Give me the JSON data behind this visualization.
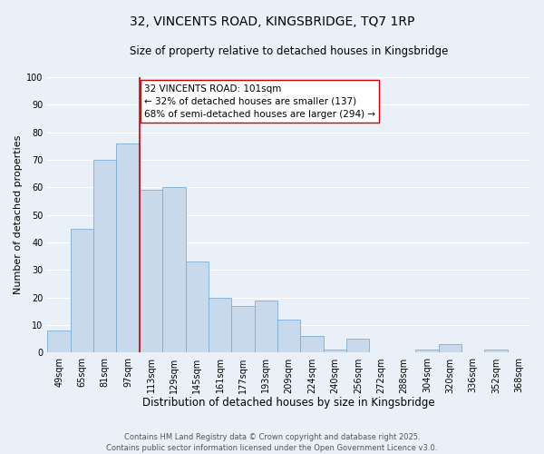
{
  "title": "32, VINCENTS ROAD, KINGSBRIDGE, TQ7 1RP",
  "subtitle": "Size of property relative to detached houses in Kingsbridge",
  "xlabel": "Distribution of detached houses by size in Kingsbridge",
  "ylabel": "Number of detached properties",
  "categories": [
    "49sqm",
    "65sqm",
    "81sqm",
    "97sqm",
    "113sqm",
    "129sqm",
    "145sqm",
    "161sqm",
    "177sqm",
    "193sqm",
    "209sqm",
    "224sqm",
    "240sqm",
    "256sqm",
    "272sqm",
    "288sqm",
    "304sqm",
    "320sqm",
    "336sqm",
    "352sqm",
    "368sqm"
  ],
  "values": [
    8,
    45,
    70,
    76,
    59,
    60,
    33,
    20,
    17,
    19,
    12,
    6,
    1,
    5,
    0,
    0,
    1,
    3,
    0,
    1,
    0
  ],
  "bar_color": "#c9d9ec",
  "bar_edge_color": "#7aaed6",
  "bar_width": 1.0,
  "ylim": [
    0,
    100
  ],
  "yticks": [
    0,
    10,
    20,
    30,
    40,
    50,
    60,
    70,
    80,
    90,
    100
  ],
  "vline_color": "#cc0000",
  "vline_pos": 3.5,
  "annotation_text": "32 VINCENTS ROAD: 101sqm\n← 32% of detached houses are smaller (137)\n68% of semi-detached houses are larger (294) →",
  "annotation_box_color": "#ffffff",
  "annotation_box_edge_color": "#cc0000",
  "background_color": "#eaf0f8",
  "grid_color": "#ffffff",
  "footer_text": "Contains HM Land Registry data © Crown copyright and database right 2025.\nContains public sector information licensed under the Open Government Licence v3.0.",
  "title_fontsize": 10,
  "subtitle_fontsize": 8.5,
  "xlabel_fontsize": 8.5,
  "ylabel_fontsize": 8,
  "tick_fontsize": 7,
  "annotation_fontsize": 7.5,
  "footer_fontsize": 6
}
